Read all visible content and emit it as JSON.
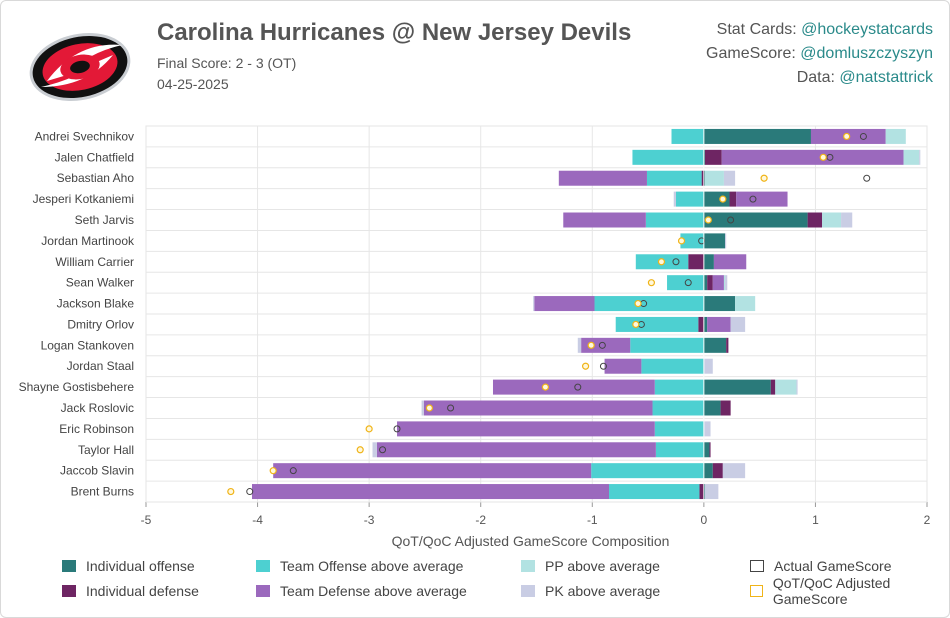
{
  "header": {
    "title": "Carolina Hurricanes @ New Jersey Devils",
    "final_score": "Final Score: 2 - 3 (OT)",
    "date": "04-25-2025",
    "logo": "hurricanes-logo"
  },
  "credits": [
    {
      "label": "Stat Cards: ",
      "handle": "@hockeystatcards"
    },
    {
      "label": "GameScore: ",
      "handle": "@domluszczyszyn"
    },
    {
      "label": "Data: ",
      "handle": "@natstattrick"
    }
  ],
  "colors": {
    "ind_off": "#2a7a7a",
    "ind_def": "#6e2563",
    "team_off": "#4dd0d1",
    "team_def": "#9b69bd",
    "pp": "#b2e2e2",
    "pk": "#c9cde4",
    "actual_marker": "#444444",
    "adj_marker": "#f0b419"
  },
  "legend": [
    {
      "key": "ind_off",
      "label": "Individual offense",
      "style": "fill"
    },
    {
      "key": "team_off",
      "label": "Team Offense above average",
      "style": "fill"
    },
    {
      "key": "pp",
      "label": "PP above average",
      "style": "fill"
    },
    {
      "key": "actual_marker",
      "label": "Actual GameScore",
      "style": "outline"
    },
    {
      "key": "ind_def",
      "label": "Individual defense",
      "style": "fill"
    },
    {
      "key": "team_def",
      "label": "Team Defense above average",
      "style": "fill"
    },
    {
      "key": "pk",
      "label": "PK above average",
      "style": "fill"
    },
    {
      "key": "adj_marker",
      "label": "QoT/QoC Adjusted GameScore",
      "style": "outline"
    }
  ],
  "chart_data": {
    "type": "bar",
    "orientation": "horizontal",
    "stacked": "diverging",
    "xlabel": "QoT/QoC Adjusted GameScore Composition",
    "xlim": [
      -5,
      2
    ],
    "xticks": [
      -5,
      -4,
      -3,
      -2,
      -1,
      0,
      1,
      2
    ],
    "grid": true,
    "legend_position": "bottom",
    "categories": [
      "Andrei Svechnikov",
      "Jalen Chatfield",
      "Sebastian Aho",
      "Jesperi Kotkaniemi",
      "Seth Jarvis",
      "Jordan Martinook",
      "William Carrier",
      "Sean Walker",
      "Jackson Blake",
      "Dmitry Orlov",
      "Logan Stankoven",
      "Jordan Staal",
      "Shayne Gostisbehere",
      "Jack Roslovic",
      "Eric Robinson",
      "Taylor Hall",
      "Jaccob Slavin",
      "Brent Burns"
    ],
    "series": [
      {
        "name": "Individual offense",
        "key": "ind_off",
        "values": [
          0.96,
          0.01,
          0.01,
          0.23,
          0.93,
          0.19,
          0.09,
          0.03,
          0.28,
          0.03,
          0.2,
          0,
          0.6,
          0.15,
          0,
          0.05,
          0.08,
          0.01
        ]
      },
      {
        "name": "Individual defense",
        "key": "ind_def",
        "values": [
          0,
          0.15,
          -0.02,
          0.06,
          0.13,
          0,
          -0.14,
          0.05,
          0,
          -0.05,
          0.02,
          0,
          0.04,
          0.09,
          0,
          0.01,
          0.09,
          -0.04
        ]
      },
      {
        "name": "Team Offense above average",
        "key": "team_off",
        "values": [
          -0.29,
          -0.64,
          -0.49,
          -0.25,
          -0.52,
          -0.21,
          -0.47,
          -0.33,
          -0.98,
          -0.74,
          -0.66,
          -0.56,
          -0.44,
          -0.46,
          -0.44,
          -0.43,
          -1.01,
          -0.81
        ]
      },
      {
        "name": "Team Defense above average",
        "key": "team_def",
        "values": [
          0.67,
          1.63,
          -0.79,
          0.46,
          -0.74,
          0,
          0.29,
          0.1,
          -0.54,
          0.21,
          -0.44,
          -0.33,
          -1.45,
          -2.05,
          -2.31,
          -2.5,
          -2.85,
          -3.2
        ]
      },
      {
        "name": "PP above average",
        "key": "pp",
        "values": [
          0.18,
          0.14,
          0.17,
          0,
          0.17,
          0,
          0,
          0.01,
          0.18,
          0,
          0,
          0,
          0.19,
          0,
          0,
          0,
          0,
          0
        ]
      },
      {
        "name": "PK above average",
        "key": "pk",
        "values": [
          0,
          0.01,
          0.1,
          -0.02,
          0.1,
          0.01,
          0,
          0.02,
          -0.01,
          0.13,
          -0.03,
          0.08,
          0.01,
          -0.02,
          0.06,
          -0.04,
          0.2,
          0.12
        ]
      }
    ],
    "actual_gamescore": [
      1.43,
      1.13,
      1.46,
      0.44,
      0.24,
      -0.02,
      -0.25,
      -0.14,
      -0.54,
      -0.56,
      -0.91,
      -0.9,
      -1.13,
      -2.27,
      -2.75,
      -2.88,
      -3.68,
      -4.07
    ],
    "adjusted_gamescore": [
      1.28,
      1.07,
      0.54,
      0.17,
      0.04,
      -0.2,
      -0.38,
      -0.47,
      -0.59,
      -0.61,
      -1.01,
      -1.06,
      -1.42,
      -2.46,
      -3.0,
      -3.08,
      -3.86,
      -4.24
    ]
  }
}
